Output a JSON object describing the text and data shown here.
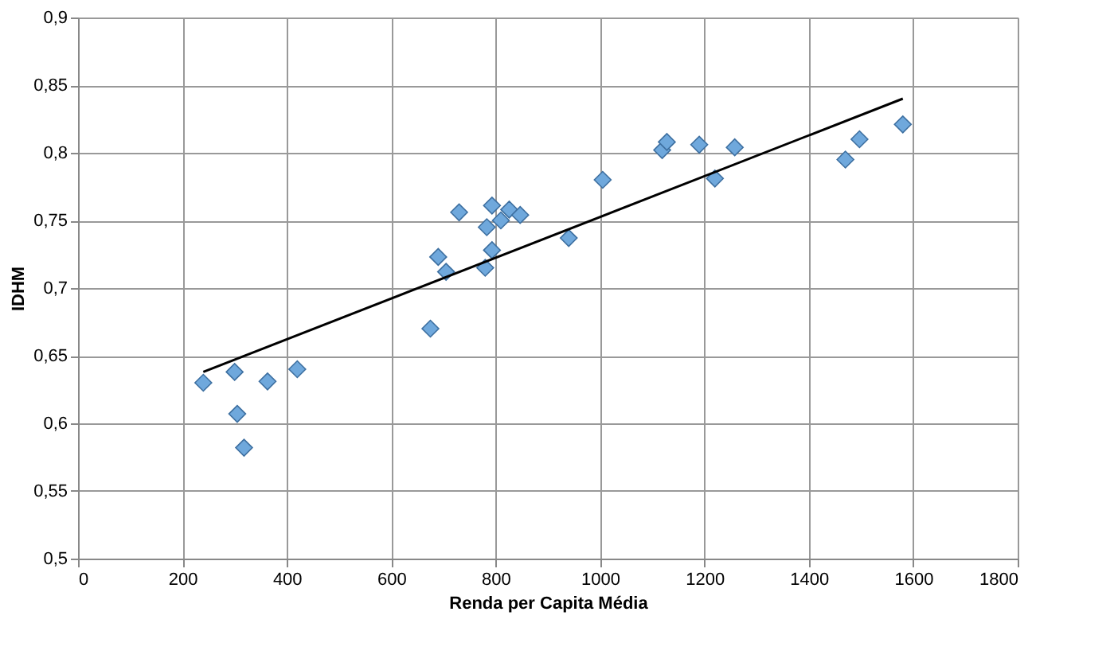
{
  "chart_data": {
    "type": "scatter",
    "xlabel": "Renda per Capita Média",
    "ylabel": "IDHM",
    "xlim": [
      0,
      1800
    ],
    "xticks": [
      0,
      200,
      400,
      600,
      800,
      1000,
      1200,
      1400,
      1600,
      1800
    ],
    "ylim": [
      0.5,
      0.9
    ],
    "yticks": [
      {
        "value": 0.5,
        "label": "0,5"
      },
      {
        "value": 0.55,
        "label": "0,55"
      },
      {
        "value": 0.6,
        "label": "0,6"
      },
      {
        "value": 0.65,
        "label": "0,65"
      },
      {
        "value": 0.7,
        "label": "0,7"
      },
      {
        "value": 0.75,
        "label": "0,75"
      },
      {
        "value": 0.8,
        "label": "0,8"
      },
      {
        "value": 0.85,
        "label": "0,85"
      },
      {
        "value": 0.9,
        "label": "0,9"
      }
    ],
    "grid": true,
    "marker": "diamond",
    "series": [
      {
        "color": "#6fa8dc",
        "x": [
          240,
          300,
          305,
          318,
          363,
          420,
          675,
          690,
          705,
          730,
          780,
          783,
          793,
          793,
          810,
          826,
          847,
          940,
          1005,
          1119,
          1128,
          1190,
          1220,
          1258,
          1470,
          1497,
          1580
        ],
        "values": [
          0.63,
          0.638,
          0.607,
          0.582,
          0.631,
          0.64,
          0.67,
          0.723,
          0.712,
          0.756,
          0.715,
          0.745,
          0.761,
          0.728,
          0.75,
          0.758,
          0.754,
          0.737,
          0.78,
          0.802,
          0.808,
          0.806,
          0.781,
          0.804,
          0.795,
          0.81,
          0.821
        ]
      },
      {
        "type": "line",
        "color": "#000000",
        "marker": "none",
        "x": [
          240,
          1580
        ],
        "values": [
          0.638,
          0.84
        ]
      }
    ]
  }
}
